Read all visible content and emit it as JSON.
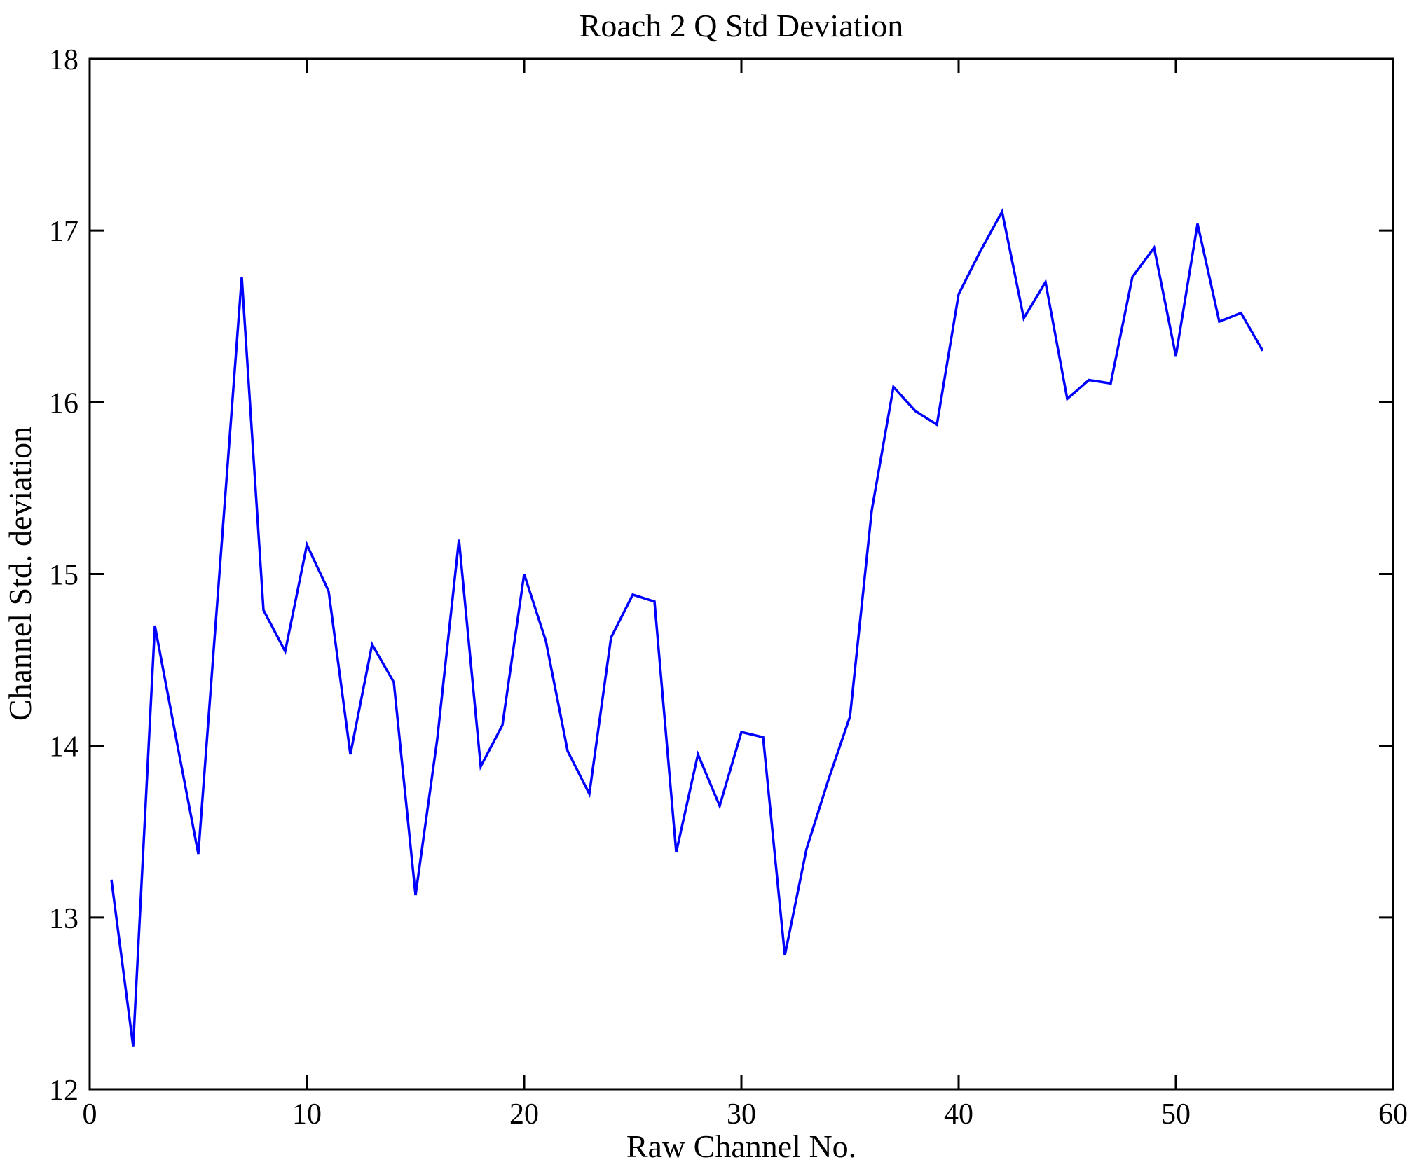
{
  "figure": {
    "background": "#ffffff",
    "axis_color": "#000000"
  },
  "chart_data": {
    "type": "line",
    "title": "Roach 2 Q Std Deviation",
    "xlabel": "Raw Channel No.",
    "ylabel": "Channel Std. deviation",
    "xlim": [
      0,
      60
    ],
    "ylim": [
      12,
      18
    ],
    "x_ticks": [
      "0",
      "10",
      "20",
      "30",
      "40",
      "50",
      "60"
    ],
    "x_tick_values": [
      0,
      10,
      20,
      30,
      40,
      50,
      60
    ],
    "y_ticks": [
      "12",
      "13",
      "14",
      "15",
      "16",
      "17",
      "18"
    ],
    "y_tick_values": [
      12,
      13,
      14,
      15,
      16,
      17,
      18
    ],
    "grid": false,
    "legend": null,
    "line_color": "#0000FF",
    "series": [
      {
        "name": "Channel Std. deviation",
        "x": [
          1,
          2,
          3,
          4,
          5,
          6,
          7,
          8,
          9,
          10,
          11,
          12,
          13,
          14,
          15,
          16,
          17,
          18,
          19,
          20,
          21,
          22,
          23,
          24,
          25,
          26,
          27,
          28,
          29,
          30,
          31,
          32,
          33,
          34,
          35,
          36,
          37,
          38,
          39,
          40,
          41,
          42,
          43,
          44,
          45,
          46,
          47,
          48,
          49,
          50,
          51,
          52,
          53,
          54
        ],
        "y": [
          13.22,
          12.25,
          14.7,
          14.03,
          13.37,
          15.05,
          16.73,
          14.79,
          14.55,
          15.17,
          14.9,
          13.95,
          14.59,
          14.37,
          13.13,
          14.04,
          15.2,
          13.88,
          14.12,
          15.0,
          14.61,
          13.97,
          13.72,
          14.63,
          14.88,
          14.84,
          13.38,
          13.95,
          13.65,
          14.08,
          14.05,
          12.78,
          13.4,
          13.8,
          14.17,
          15.37,
          16.09,
          15.95,
          15.87,
          16.63,
          16.88,
          17.11,
          16.49,
          16.7,
          16.02,
          16.13,
          16.11,
          16.73,
          16.9,
          16.27,
          17.04,
          16.47,
          16.52,
          16.3
        ]
      }
    ]
  }
}
